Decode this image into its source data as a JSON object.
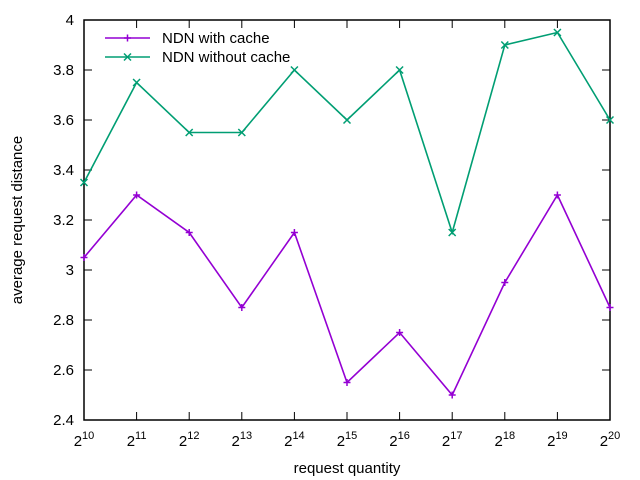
{
  "chart_data": {
    "type": "line",
    "title": "",
    "xlabel": "request quantity",
    "ylabel": "average request distance",
    "x_ticks": [
      {
        "base": "2",
        "exp": "10"
      },
      {
        "base": "2",
        "exp": "11"
      },
      {
        "base": "2",
        "exp": "12"
      },
      {
        "base": "2",
        "exp": "13"
      },
      {
        "base": "2",
        "exp": "14"
      },
      {
        "base": "2",
        "exp": "15"
      },
      {
        "base": "2",
        "exp": "16"
      },
      {
        "base": "2",
        "exp": "17"
      },
      {
        "base": "2",
        "exp": "18"
      },
      {
        "base": "2",
        "exp": "19"
      },
      {
        "base": "2",
        "exp": "20"
      }
    ],
    "x": [
      1024,
      2048,
      4096,
      8192,
      16384,
      32768,
      65536,
      131072,
      262144,
      524288,
      1048576
    ],
    "x_scale": "log2",
    "ylim": [
      2.4,
      4.0
    ],
    "y_ticks": [
      "2.4",
      "2.6",
      "2.8",
      "3",
      "3.2",
      "3.4",
      "3.6",
      "3.8",
      "4"
    ],
    "grid": false,
    "legend_position": "top-left",
    "series": [
      {
        "name": "NDN with cache",
        "color": "#9400d3",
        "marker": "plus",
        "values": [
          3.05,
          3.3,
          3.15,
          2.85,
          3.15,
          2.55,
          2.75,
          2.5,
          2.95,
          3.3,
          2.85
        ]
      },
      {
        "name": "NDN without cache",
        "color": "#009e73",
        "marker": "cross",
        "values": [
          3.35,
          3.75,
          3.55,
          3.55,
          3.8,
          3.6,
          3.8,
          3.15,
          3.9,
          3.95,
          3.6
        ]
      }
    ]
  }
}
